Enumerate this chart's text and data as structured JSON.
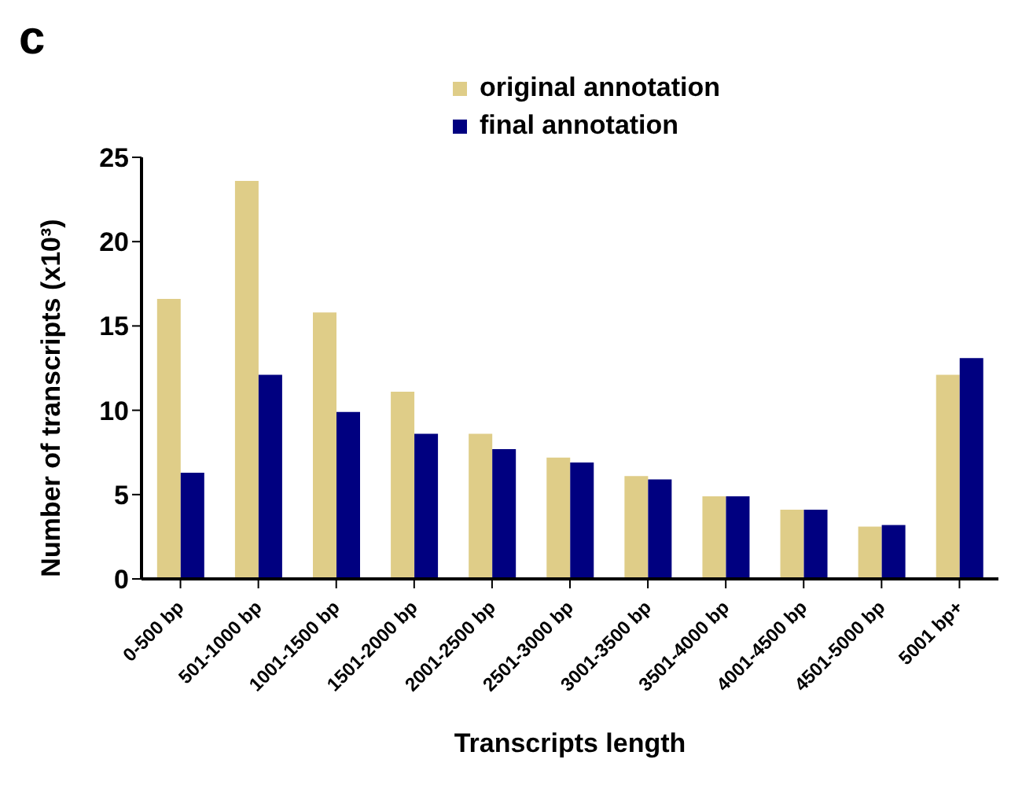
{
  "chart_data": {
    "type": "bar",
    "xlabel": "Transcripts length",
    "ylabel": "Number of transcripts (x10³)",
    "annotations": [
      "c"
    ],
    "categories": [
      "0-500 bp",
      "501-1000 bp",
      "1001-1500 bp",
      "1501-2000 bp",
      "2001-2500 bp",
      "2501-3000 bp",
      "3001-3500 bp",
      "3501-4000 bp",
      "4001-4500 bp",
      "4501-5000 bp",
      "5001 bp+"
    ],
    "series": [
      {
        "name": "original annotation",
        "color": "#dfcd88",
        "values": [
          16.6,
          23.6,
          15.8,
          11.1,
          8.6,
          7.2,
          6.1,
          4.9,
          4.1,
          3.1,
          12.1
        ]
      },
      {
        "name": "final annotation",
        "color": "#000080",
        "values": [
          6.3,
          12.1,
          9.9,
          8.6,
          7.7,
          6.9,
          5.9,
          4.9,
          4.1,
          3.2,
          13.1
        ]
      }
    ],
    "ylim": [
      0,
      25
    ],
    "yticks": [
      0,
      5,
      10,
      15,
      20,
      25
    ],
    "grid": false,
    "legend": "top"
  }
}
